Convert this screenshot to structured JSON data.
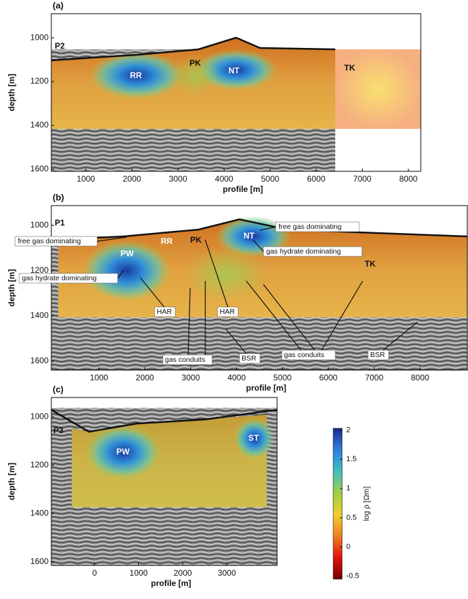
{
  "chart_data": [
    {
      "type": "section",
      "title": "(a)",
      "xlabel": "profile [m]",
      "ylabel": "depth [m]",
      "xlim": [
        250,
        8270
      ],
      "xticks": [
        1000,
        2000,
        3000,
        4000,
        5000,
        6000,
        7000,
        8000
      ],
      "ylim": [
        890,
        1610
      ],
      "yticks": [
        1000,
        1200,
        1400,
        1600
      ],
      "annotations": [
        "P2",
        "RR",
        "PK",
        "NT",
        "TK"
      ]
    },
    {
      "type": "section",
      "title": "(b)",
      "xlabel": "profile [m]",
      "ylabel": "depth [m]",
      "xlim": [
        -40,
        9030
      ],
      "xticks": [
        1000,
        2000,
        3000,
        4000,
        5000,
        6000,
        7000,
        8000
      ],
      "ylim": [
        913,
        1640
      ],
      "yticks": [
        1000,
        1200,
        1400,
        1600
      ],
      "annotations": [
        "P1",
        "RR",
        "PK",
        "NT",
        "TK",
        "PW",
        "free gas dominating",
        "free gas dominating",
        "gas hydrate dominating",
        "gas hydrate dominating",
        "HAR",
        "HAR",
        "gas conduits",
        "gas conduits",
        "BSR",
        "BSR"
      ]
    },
    {
      "type": "section",
      "title": "(c)",
      "xlabel": "profile [m]",
      "ylabel": "depth [m]",
      "xlim": [
        -980,
        4140
      ],
      "xticks": [
        0,
        1000,
        2000,
        3000
      ],
      "ylim": [
        920,
        1615
      ],
      "yticks": [
        1000,
        1200,
        1400,
        1600
      ],
      "annotations": [
        "P3",
        "PW",
        "ST"
      ]
    },
    {
      "type": "colorbar",
      "title": "log ρ [Ωm]",
      "ylim": [
        -0.55,
        2.03
      ],
      "yticks": [
        2,
        1.5,
        1,
        0.5,
        0,
        -0.5
      ],
      "colormap": [
        "#7a0000",
        "#e01010",
        "#f08020",
        "#f0d030",
        "#9ed040",
        "#40c0c0",
        "#3080e0",
        "#1a2a90"
      ]
    }
  ]
}
